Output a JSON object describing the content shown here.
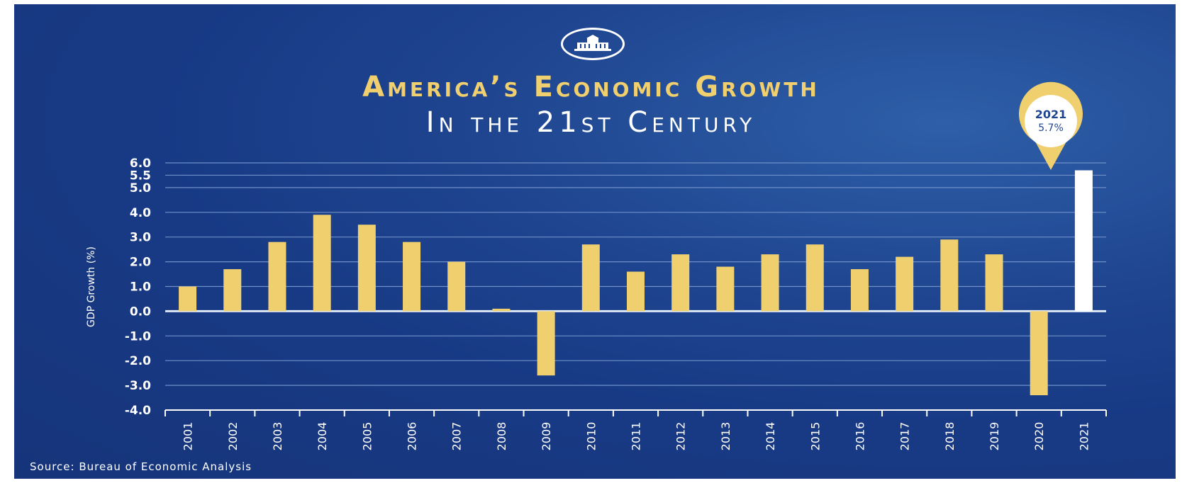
{
  "header": {
    "title_line1": "America’s Economic Growth",
    "title_line2": "In the 21st Century"
  },
  "source": "Source: Bureau of Economic Analysis",
  "colors": {
    "background": "#1f4590",
    "bar": "#f0cf6e",
    "highlight_bar": "#ffffff",
    "grid": "#6f8fc8"
  },
  "icons": {
    "logo": "white-house-icon"
  },
  "chart_data": {
    "type": "bar",
    "ylabel": "GDP Growth (%)",
    "xlabel": "",
    "ylim": [
      -4.0,
      6.0
    ],
    "yticks": [
      "6.0",
      "5.5",
      "5.0",
      "4.0",
      "3.0",
      "2.0",
      "1.0",
      "0.0",
      "-1.0",
      "-2.0",
      "-3.0",
      "-4.0"
    ],
    "grid": true,
    "categories": [
      "2001",
      "2002",
      "2003",
      "2004",
      "2005",
      "2006",
      "2007",
      "2008",
      "2009",
      "2010",
      "2011",
      "2012",
      "2013",
      "2014",
      "2015",
      "2016",
      "2017",
      "2018",
      "2019",
      "2020",
      "2021"
    ],
    "values": [
      1.0,
      1.7,
      2.8,
      3.9,
      3.5,
      2.8,
      2.0,
      0.1,
      -2.6,
      2.7,
      1.6,
      2.3,
      1.8,
      2.3,
      2.7,
      1.7,
      2.2,
      2.9,
      2.3,
      -3.4,
      5.7
    ],
    "highlight": {
      "category": "2021",
      "year_label": "2021",
      "value_label": "5.7%"
    }
  }
}
